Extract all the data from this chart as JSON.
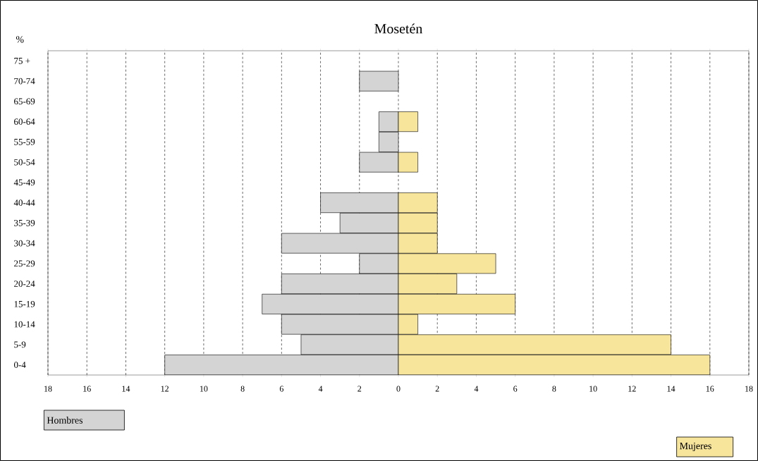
{
  "chart_data": {
    "type": "bar",
    "orientation": "horizontal",
    "title": "Mosetén",
    "ylabel": "%",
    "categories": [
      "75 +",
      "70-74",
      "65-69",
      "60-64",
      "55-59",
      "50-54",
      "45-49",
      "40-44",
      "35-39",
      "30-34",
      "25-29",
      "20-24",
      "15-19",
      "10-14",
      "5-9",
      "0-4"
    ],
    "series": [
      {
        "name": "Hombres",
        "color": "#d4d4d4",
        "values": [
          0,
          -2,
          0,
          -1,
          -1,
          -2,
          0,
          -4,
          -3,
          -6,
          -2,
          -6,
          -7,
          -6,
          -5,
          -12
        ]
      },
      {
        "name": "Mujeres",
        "color": "#f7e59b",
        "values": [
          0,
          0,
          0,
          1,
          0,
          1,
          0,
          2,
          2,
          2,
          5,
          3,
          6,
          1,
          14,
          16
        ]
      }
    ],
    "xlim": [
      -18,
      18
    ],
    "xticks": [
      {
        "value": -18,
        "label": "18"
      },
      {
        "value": -16,
        "label": "16"
      },
      {
        "value": -14,
        "label": "14"
      },
      {
        "value": -12,
        "label": "12"
      },
      {
        "value": -10,
        "label": "10"
      },
      {
        "value": -8,
        "label": "8"
      },
      {
        "value": -6,
        "label": "6"
      },
      {
        "value": -4,
        "label": "4"
      },
      {
        "value": -2,
        "label": "2"
      },
      0,
      2,
      4,
      6,
      8,
      10,
      12,
      14,
      16,
      18
    ],
    "grid": "x",
    "legend": "bottom",
    "stacked": true
  }
}
